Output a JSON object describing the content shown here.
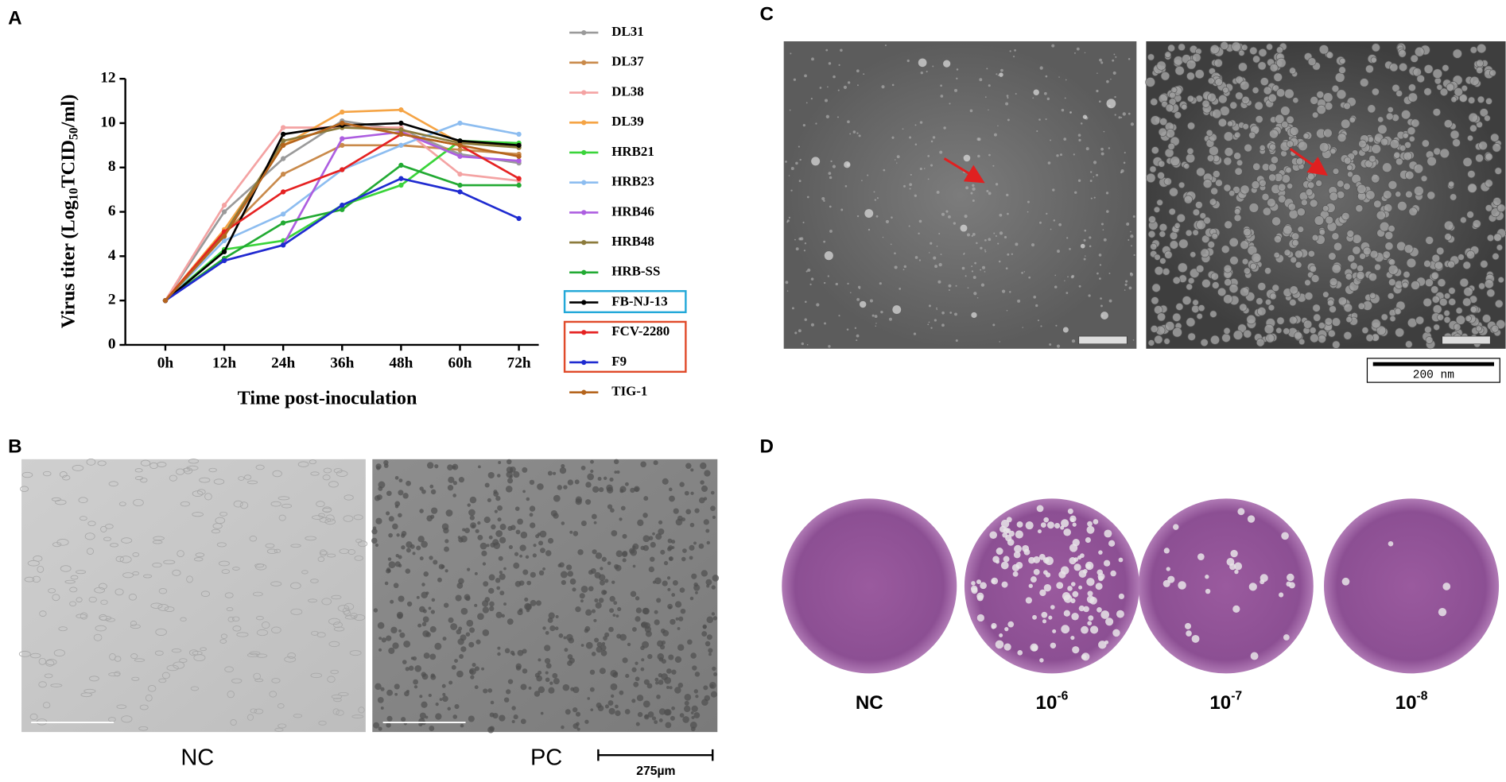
{
  "panel_labels": [
    "A",
    "B",
    "C",
    "D"
  ],
  "chart_data": {
    "type": "line",
    "x_label": "Time post-inoculation",
    "y_label": [
      "Virus titer (Log",
      "10",
      "TCID",
      "50",
      "/ml)"
    ],
    "categories": [
      "0h",
      "12h",
      "24h",
      "36h",
      "48h",
      "60h",
      "72h"
    ],
    "ylim": [
      0,
      12
    ],
    "yticks": [
      0,
      2,
      4,
      6,
      8,
      10,
      12
    ],
    "series": [
      {
        "name": "DL31",
        "color": "#9a9a9a",
        "values": [
          2,
          6.0,
          8.4,
          10.1,
          9.7,
          8.6,
          8.2
        ]
      },
      {
        "name": "DL37",
        "color": "#c98a4b",
        "values": [
          2,
          5.0,
          7.7,
          9.0,
          9.0,
          8.8,
          8.6
        ]
      },
      {
        "name": "DL38",
        "color": "#f4a3a3",
        "values": [
          2,
          6.3,
          9.8,
          9.8,
          9.8,
          7.7,
          7.4
        ]
      },
      {
        "name": "DL39",
        "color": "#f5a445",
        "values": [
          2,
          5.2,
          9.0,
          10.5,
          10.6,
          9.1,
          9.0
        ]
      },
      {
        "name": "HRB21",
        "color": "#3ad43a",
        "values": [
          2,
          4.3,
          4.7,
          6.3,
          7.2,
          9.2,
          9.1
        ]
      },
      {
        "name": "HRB23",
        "color": "#8dbdf0",
        "values": [
          2,
          4.7,
          5.9,
          7.9,
          9.0,
          10.0,
          9.5
        ]
      },
      {
        "name": "HRB46",
        "color": "#ad5ee0",
        "values": [
          2,
          3.8,
          4.5,
          9.3,
          9.6,
          8.5,
          8.3
        ]
      },
      {
        "name": "HRB48",
        "color": "#8c7b3c",
        "values": [
          2,
          5.0,
          9.2,
          9.8,
          9.7,
          9.1,
          8.9
        ]
      },
      {
        "name": "HRB-SS",
        "color": "#22aa33",
        "values": [
          2,
          3.9,
          5.5,
          6.1,
          8.1,
          7.2,
          7.2
        ]
      },
      {
        "name": "FB-NJ-13",
        "color": "#000000",
        "values": [
          2,
          4.2,
          9.5,
          9.9,
          10.0,
          9.2,
          9.0
        ]
      },
      {
        "name": "FCV-2280",
        "color": "#e52222",
        "values": [
          2,
          5.1,
          6.9,
          7.9,
          9.5,
          9.0,
          7.5
        ]
      },
      {
        "name": "F9",
        "color": "#1f2bd0",
        "values": [
          2,
          3.8,
          4.5,
          6.3,
          7.5,
          6.9,
          5.7
        ]
      },
      {
        "name": "TIG-1",
        "color": "#b5651d",
        "values": [
          2,
          4.9,
          9.0,
          10.0,
          9.5,
          9.0,
          8.5
        ]
      }
    ]
  },
  "panel_b": {
    "labels": [
      "NC",
      "PC"
    ],
    "scale_bar": "275µm"
  },
  "panel_c": {
    "scale_bar": "200 nm"
  },
  "panel_d": {
    "labels": [
      {
        "text": "NC"
      },
      {
        "base": "10",
        "exp": "-6"
      },
      {
        "base": "10",
        "exp": "-7"
      },
      {
        "base": "10",
        "exp": "-8"
      }
    ]
  }
}
